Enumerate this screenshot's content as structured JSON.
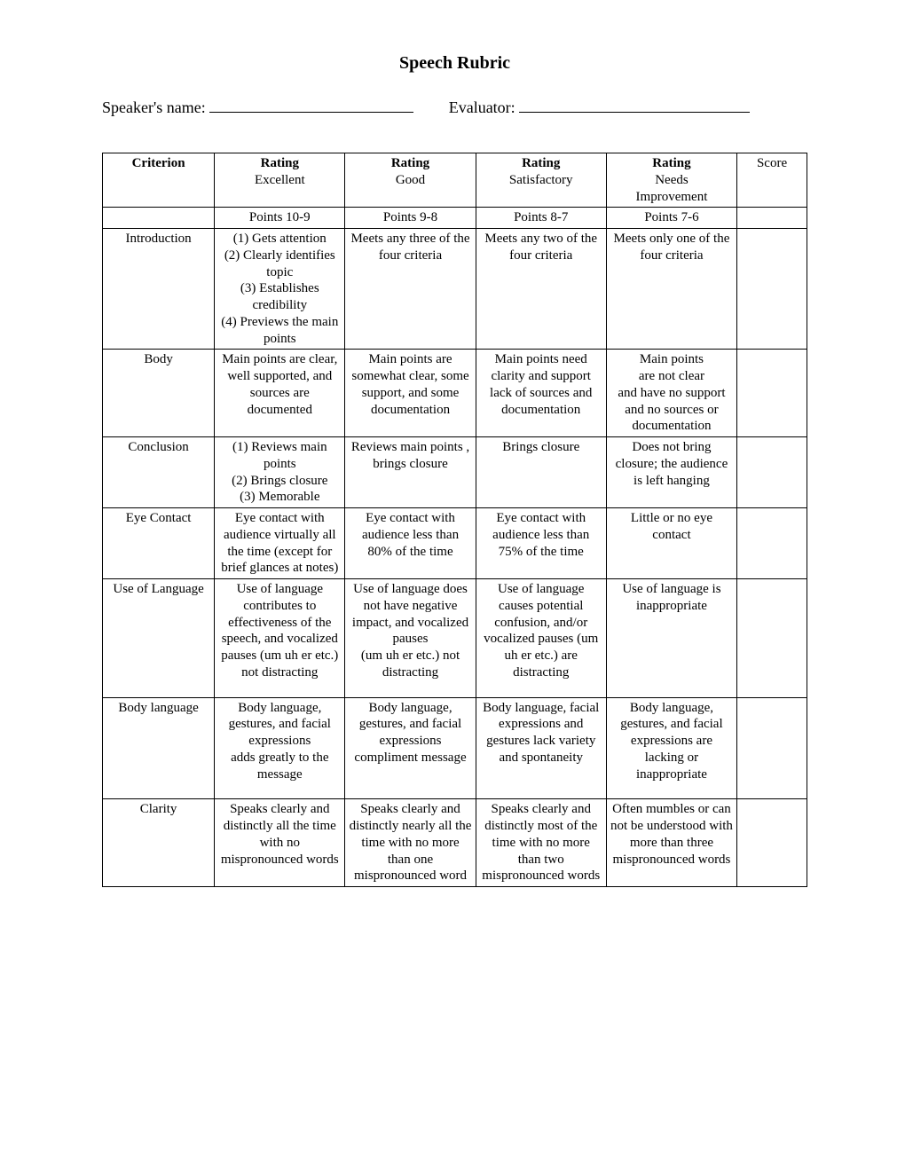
{
  "title": "Speech Rubric",
  "form": {
    "speaker_label": "Speaker's name:",
    "evaluator_label": "Evaluator:"
  },
  "table": {
    "headers": {
      "criterion": "Criterion",
      "rating_label": "Rating",
      "excellent": "Excellent",
      "good": "Good",
      "satisfactory": "Satisfactory",
      "needs_improvement": "Needs\nImprovement",
      "score": "Score"
    },
    "points": {
      "excellent": "Points 10-9",
      "good": "Points 9-8",
      "satisfactory": "Points 8-7",
      "needs_improvement": "Points 7-6"
    },
    "rows": [
      {
        "criterion": "Introduction",
        "excellent": "(1) Gets attention\n(2) Clearly identifies topic\n(3) Establishes credibility\n(4) Previews the main points",
        "good": "Meets any three of the four criteria",
        "satisfactory": "Meets any two of the four criteria",
        "needs_improvement": "Meets only one of the four criteria",
        "score": ""
      },
      {
        "criterion": "Body",
        "excellent": "Main points are clear,\nwell supported, and sources are documented",
        "good": "Main points are somewhat clear, some support, and some documentation",
        "satisfactory": "Main points need clarity and support lack of sources and documentation",
        "needs_improvement": "Main points\nare not clear\nand have no support and no sources or documentation",
        "score": ""
      },
      {
        "criterion": "Conclusion",
        "excellent": "(1) Reviews main points\n(2) Brings closure\n(3) Memorable",
        "good": "Reviews main points , brings closure",
        "satisfactory": "Brings closure",
        "needs_improvement": "Does not bring closure; the audience is left hanging",
        "score": ""
      },
      {
        "criterion": "Eye Contact",
        "excellent": "Eye contact with audience virtually all the time (except for brief glances at notes)",
        "good": "Eye contact with audience less than 80% of the time",
        "satisfactory": "Eye contact with audience less than 75% of the time",
        "needs_improvement": "Little or no eye contact",
        "score": ""
      },
      {
        "criterion": "Use of Language",
        "excellent": "Use of language contributes to effectiveness of the speech, and vocalized pauses (um uh er etc.) not distracting",
        "good": "Use of language does not have negative impact, and vocalized pauses\n(um uh er etc.) not distracting",
        "satisfactory": "Use of language causes potential confusion, and/or vocalized pauses (um uh er etc.) are distracting",
        "needs_improvement": "Use of language is inappropriate",
        "score": "",
        "tall": true
      },
      {
        "criterion": "Body language",
        "excellent": "Body language, gestures, and facial expressions\nadds greatly to the message",
        "good": "Body language, gestures, and facial expressions compliment message",
        "satisfactory": "Body language, facial expressions and gestures lack variety and spontaneity",
        "needs_improvement": "Body language, gestures, and facial expressions are lacking or inappropriate",
        "score": "",
        "tall": true
      },
      {
        "criterion": "Clarity",
        "excellent": "Speaks clearly and distinctly all the time with no mispronounced words",
        "good": "Speaks clearly and distinctly nearly all the time with no more than one mispronounced word",
        "satisfactory": "Speaks clearly and distinctly most of the time with no more than two mispronounced words",
        "needs_improvement": "Often mumbles or can not be understood with more than three mispronounced words",
        "score": ""
      }
    ]
  },
  "colors": {
    "text": "#000000",
    "background": "#ffffff",
    "border": "#000000"
  }
}
